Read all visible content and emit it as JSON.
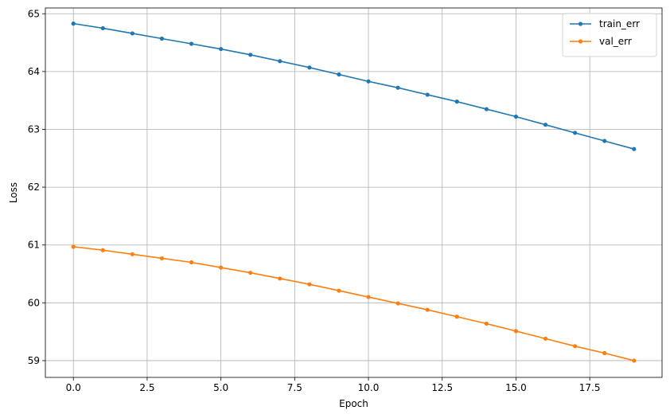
{
  "chart_data": {
    "type": "line",
    "xlabel": "Epoch",
    "ylabel": "Loss",
    "xlim": [
      -0.95,
      19.95
    ],
    "ylim": [
      58.71,
      65.1
    ],
    "x_ticks": [
      0.0,
      2.5,
      5.0,
      7.5,
      10.0,
      12.5,
      15.0,
      17.5
    ],
    "x_tick_labels": [
      "0.0",
      "2.5",
      "5.0",
      "7.5",
      "10.0",
      "12.5",
      "15.0",
      "17.5"
    ],
    "y_ticks": [
      59,
      60,
      61,
      62,
      63,
      64,
      65
    ],
    "y_tick_labels": [
      "59",
      "60",
      "61",
      "62",
      "63",
      "64",
      "65"
    ],
    "grid": true,
    "legend_position": "top-right",
    "x": [
      0,
      1,
      2,
      3,
      4,
      5,
      6,
      7,
      8,
      9,
      10,
      11,
      12,
      13,
      14,
      15,
      16,
      17,
      18,
      19
    ],
    "series": [
      {
        "name": "train_err",
        "color": "#1f77b4",
        "marker": "circle",
        "values": [
          64.83,
          64.75,
          64.66,
          64.57,
          64.48,
          64.39,
          64.29,
          64.18,
          64.07,
          63.95,
          63.83,
          63.72,
          63.6,
          63.48,
          63.35,
          63.22,
          63.08,
          62.94,
          62.8,
          62.66
        ]
      },
      {
        "name": "val_err",
        "color": "#ff7f0e",
        "marker": "circle",
        "values": [
          60.97,
          60.91,
          60.84,
          60.77,
          60.7,
          60.61,
          60.52,
          60.42,
          60.32,
          60.21,
          60.1,
          59.99,
          59.88,
          59.76,
          59.64,
          59.51,
          59.38,
          59.25,
          59.13,
          59.0
        ]
      }
    ]
  }
}
